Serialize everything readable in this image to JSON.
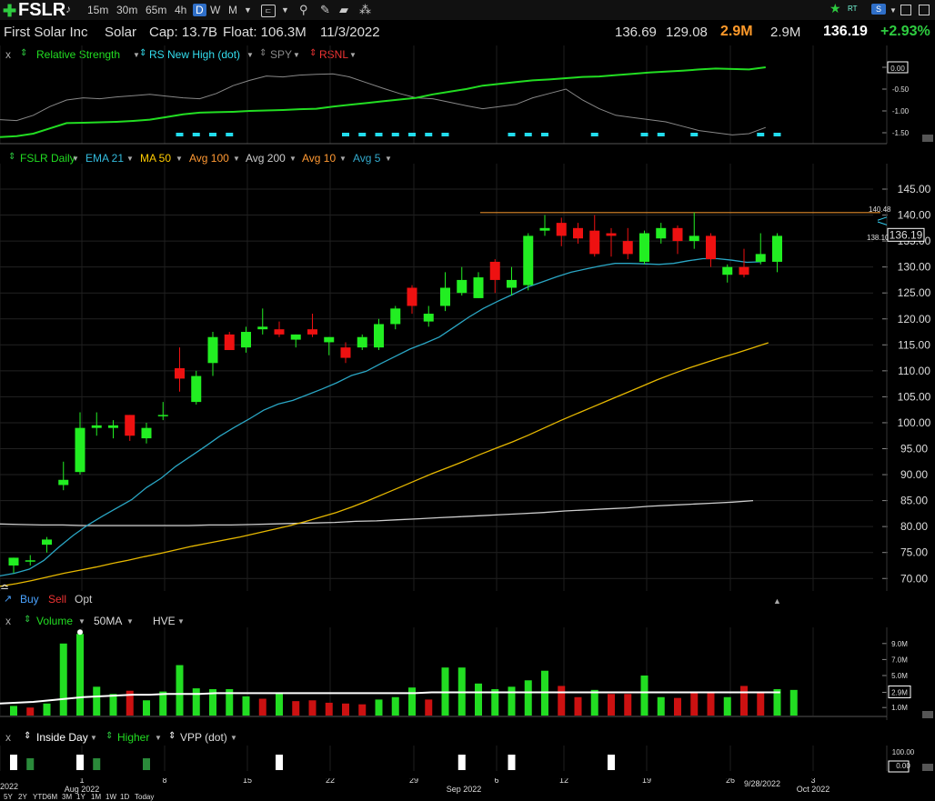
{
  "toolbar": {
    "ticker": "FSLR",
    "timeframes": [
      "15m",
      "30m",
      "65m",
      "4h",
      "D",
      "W",
      "M"
    ],
    "active_timeframe": "D",
    "right_icons": [
      "star-icon",
      "rt-icon",
      "s-icon",
      "window-icon"
    ],
    "rt_label": "RT"
  },
  "info": {
    "company": "First Solar Inc",
    "sector": "Solar",
    "cap": "Cap: 13.7B",
    "float": "Float: 106.3M",
    "date": "11/3/2022",
    "high": "136.69",
    "low": "129.08",
    "volume": "2.9M",
    "avg_volume": "2.9M",
    "last": "136.19",
    "change": "+2.93%"
  },
  "rs_pane": {
    "close": "x",
    "items": [
      "Relative Strength",
      "RS New High (dot)",
      "SPY",
      "RSNL"
    ],
    "axis": [
      "0.00",
      "-0.50",
      "-1.00",
      "-1.50"
    ]
  },
  "price_pane": {
    "items": [
      "FSLR Daily",
      "EMA 21",
      "MA 50",
      "Avg 100",
      "Avg 200",
      "Avg 10",
      "Avg 5"
    ],
    "colors": [
      "#22dd22",
      "#33bbdd",
      "#ffcc00",
      "#ff9933",
      "#cccccc",
      "#ff9933",
      "#33aacc"
    ],
    "axis": [
      "145.00",
      "140.00",
      "135.00",
      "130.00",
      "125.00",
      "120.00",
      "115.00",
      "110.00",
      "105.00",
      "100.00",
      "95.00",
      "90.00",
      "85.00",
      "80.00",
      "75.00",
      "70.00"
    ],
    "last_label": "136.19",
    "resistance_label": "140.48",
    "ema_label": "138.10"
  },
  "buy_row": {
    "buy": "Buy",
    "sell": "Sell",
    "opt": "Opt"
  },
  "volume_pane": {
    "close": "x",
    "items": [
      "Volume",
      "50MA",
      "HVE"
    ],
    "axis": [
      "9.0M",
      "7.0M",
      "5.0M",
      "2.9M",
      "1.0M"
    ]
  },
  "inside_pane": {
    "close": "x",
    "items": [
      "Inside Day",
      "Higher",
      "VPP (dot)"
    ],
    "axis": [
      "100.00",
      "0.00"
    ]
  },
  "dates": {
    "labels": [
      "2022",
      "1",
      "Aug 2022",
      "8",
      "15",
      "22",
      "29",
      "Sep 2022",
      "6",
      "12",
      "19",
      "26",
      "9/28/2022",
      "3",
      "Oct 2022"
    ],
    "ranges": [
      "5Y",
      "2Y",
      "YTD",
      "6M",
      "3M",
      "1Y",
      "1M",
      "1W",
      "1D",
      "Today"
    ]
  },
  "chart_data": {
    "type": "candlestick",
    "ylim": [
      68,
      148
    ],
    "candles": [
      {
        "o": 72.5,
        "h": 74.0,
        "l": 71.0,
        "c": 74.0
      },
      {
        "o": 73.5,
        "h": 74.5,
        "l": 72.5,
        "c": 73.5
      },
      {
        "o": 76.5,
        "h": 78.0,
        "l": 75.0,
        "c": 77.5
      },
      {
        "o": 88.0,
        "h": 92.5,
        "l": 87.0,
        "c": 89.0
      },
      {
        "o": 90.5,
        "h": 102.0,
        "l": 90.0,
        "c": 99.0
      },
      {
        "o": 99.0,
        "h": 102.0,
        "l": 97.5,
        "c": 99.5
      },
      {
        "o": 99.0,
        "h": 100.5,
        "l": 97.0,
        "c": 99.5
      },
      {
        "o": 101.5,
        "h": 101.5,
        "l": 96.5,
        "c": 97.5
      },
      {
        "o": 97.0,
        "h": 100.0,
        "l": 96.0,
        "c": 99.0
      },
      {
        "o": 101.5,
        "h": 104.0,
        "l": 100.5,
        "c": 101.5
      },
      {
        "o": 110.5,
        "h": 114.5,
        "l": 106.0,
        "c": 108.5
      },
      {
        "o": 104.0,
        "h": 110.0,
        "l": 103.5,
        "c": 109.0
      },
      {
        "o": 111.5,
        "h": 117.5,
        "l": 109.0,
        "c": 116.5
      },
      {
        "o": 117.0,
        "h": 117.5,
        "l": 114.0,
        "c": 114.0
      },
      {
        "o": 114.5,
        "h": 118.5,
        "l": 113.5,
        "c": 117.5
      },
      {
        "o": 118.0,
        "h": 122.0,
        "l": 117.0,
        "c": 118.5
      },
      {
        "o": 118.0,
        "h": 119.5,
        "l": 116.5,
        "c": 117.0
      },
      {
        "o": 116.0,
        "h": 117.0,
        "l": 114.5,
        "c": 117.0
      },
      {
        "o": 118.0,
        "h": 121.0,
        "l": 116.5,
        "c": 117.0
      },
      {
        "o": 115.5,
        "h": 116.5,
        "l": 113.0,
        "c": 116.5
      },
      {
        "o": 114.5,
        "h": 115.5,
        "l": 111.5,
        "c": 112.5
      },
      {
        "o": 114.5,
        "h": 117.0,
        "l": 114.0,
        "c": 116.5
      },
      {
        "o": 114.5,
        "h": 120.0,
        "l": 114.0,
        "c": 119.0
      },
      {
        "o": 119.0,
        "h": 122.5,
        "l": 118.0,
        "c": 122.0
      },
      {
        "o": 126.0,
        "h": 126.5,
        "l": 121.0,
        "c": 122.5
      },
      {
        "o": 119.5,
        "h": 122.5,
        "l": 118.5,
        "c": 121.0
      },
      {
        "o": 122.5,
        "h": 129.0,
        "l": 121.5,
        "c": 126.0
      },
      {
        "o": 125.0,
        "h": 130.0,
        "l": 124.5,
        "c": 127.5
      },
      {
        "o": 124.0,
        "h": 129.0,
        "l": 124.0,
        "c": 128.0
      },
      {
        "o": 131.0,
        "h": 131.5,
        "l": 125.0,
        "c": 127.5
      },
      {
        "o": 126.0,
        "h": 130.0,
        "l": 124.5,
        "c": 127.5
      },
      {
        "o": 126.5,
        "h": 136.5,
        "l": 125.5,
        "c": 136.0
      },
      {
        "o": 137.0,
        "h": 140.0,
        "l": 136.0,
        "c": 137.5
      },
      {
        "o": 138.5,
        "h": 139.5,
        "l": 134.0,
        "c": 136.0
      },
      {
        "o": 137.5,
        "h": 138.5,
        "l": 134.5,
        "c": 135.5
      },
      {
        "o": 137.0,
        "h": 140.0,
        "l": 132.0,
        "c": 132.5
      },
      {
        "o": 136.5,
        "h": 137.5,
        "l": 132.0,
        "c": 136.0
      },
      {
        "o": 135.0,
        "h": 137.5,
        "l": 131.5,
        "c": 132.5
      },
      {
        "o": 131.0,
        "h": 137.0,
        "l": 130.5,
        "c": 136.5
      },
      {
        "o": 135.5,
        "h": 138.5,
        "l": 134.5,
        "c": 137.5
      },
      {
        "o": 137.5,
        "h": 138.0,
        "l": 132.5,
        "c": 135.0
      },
      {
        "o": 135.0,
        "h": 140.5,
        "l": 133.5,
        "c": 136.0
      },
      {
        "o": 136.0,
        "h": 136.5,
        "l": 130.0,
        "c": 131.5
      },
      {
        "o": 128.5,
        "h": 130.5,
        "l": 127.0,
        "c": 130.0
      },
      {
        "o": 130.0,
        "h": 133.5,
        "l": 128.0,
        "c": 128.5
      },
      {
        "o": 131.0,
        "h": 136.5,
        "l": 130.5,
        "c": 132.5
      },
      {
        "o": 131.0,
        "h": 136.5,
        "l": 129.0,
        "c": 136.0
      }
    ],
    "ema21": [
      70.5,
      71.0,
      71.8,
      73.5,
      76.0,
      78.3,
      80.3,
      82.0,
      83.6,
      85.2,
      87.5,
      89.3,
      91.6,
      93.5,
      95.4,
      97.4,
      99.1,
      100.7,
      102.4,
      103.6,
      104.3,
      105.4,
      106.5,
      107.7,
      109.1,
      109.9,
      111.4,
      112.8,
      114.2,
      115.3,
      116.5,
      118.4,
      120.3,
      122.0,
      123.4,
      124.7,
      126.1,
      127.1,
      128.1,
      129.0,
      129.6,
      130.2,
      130.7,
      130.7,
      130.6,
      130.5,
      130.7,
      131.2,
      131.6,
      131.6,
      131.3,
      130.9,
      131.0
    ],
    "ma50": [
      68.5,
      69.0,
      69.6,
      70.3,
      71.0,
      71.6,
      72.2,
      72.9,
      73.5,
      74.2,
      74.8,
      75.5,
      76.2,
      76.8,
      77.4,
      78.0,
      78.7,
      79.4,
      80.1,
      80.9,
      81.8,
      82.7,
      83.8,
      85.0,
      86.3,
      87.6,
      88.9,
      90.2,
      91.4,
      92.6,
      93.9,
      95.1,
      96.3,
      97.6,
      99.0,
      100.4,
      101.7,
      103.0,
      104.3,
      105.6,
      106.9,
      108.2,
      109.4,
      110.5,
      111.5,
      112.5,
      113.4,
      114.4,
      115.4
    ],
    "ma200": [
      80.5,
      80.4,
      80.3,
      80.3,
      80.2,
      80.2,
      80.2,
      80.2,
      80.2,
      80.2,
      80.3,
      80.3,
      80.4,
      80.5,
      80.6,
      80.7,
      80.8,
      81.0,
      81.1,
      81.3,
      81.5,
      81.7,
      81.9,
      82.1,
      82.3,
      82.5,
      82.7,
      83.0,
      83.2,
      83.4,
      83.6,
      83.9,
      84.1,
      84.3,
      84.5,
      84.7,
      85.0
    ],
    "resistance": 140.48,
    "volume": [
      {
        "v": 1.2,
        "up": true
      },
      {
        "v": 1.0,
        "up": false
      },
      {
        "v": 1.5,
        "up": true
      },
      {
        "v": 9.0,
        "up": true
      },
      {
        "v": 10.2,
        "up": true
      },
      {
        "v": 3.6,
        "up": true
      },
      {
        "v": 2.7,
        "up": true
      },
      {
        "v": 3.1,
        "up": false
      },
      {
        "v": 1.9,
        "up": true
      },
      {
        "v": 3.0,
        "up": true
      },
      {
        "v": 6.3,
        "up": true
      },
      {
        "v": 3.4,
        "up": true
      },
      {
        "v": 3.3,
        "up": true
      },
      {
        "v": 3.3,
        "up": true
      },
      {
        "v": 2.4,
        "up": true
      },
      {
        "v": 2.1,
        "up": false
      },
      {
        "v": 2.8,
        "up": true
      },
      {
        "v": 1.8,
        "up": false
      },
      {
        "v": 1.9,
        "up": false
      },
      {
        "v": 1.6,
        "up": false
      },
      {
        "v": 1.5,
        "up": false
      },
      {
        "v": 1.4,
        "up": false
      },
      {
        "v": 2.0,
        "up": true
      },
      {
        "v": 2.3,
        "up": true
      },
      {
        "v": 3.5,
        "up": true
      },
      {
        "v": 2.0,
        "up": false
      },
      {
        "v": 6.0,
        "up": true
      },
      {
        "v": 6.0,
        "up": true
      },
      {
        "v": 4.0,
        "up": true
      },
      {
        "v": 3.3,
        "up": true
      },
      {
        "v": 3.6,
        "up": true
      },
      {
        "v": 4.4,
        "up": true
      },
      {
        "v": 5.6,
        "up": true
      },
      {
        "v": 3.7,
        "up": false
      },
      {
        "v": 2.3,
        "up": false
      },
      {
        "v": 3.2,
        "up": true
      },
      {
        "v": 2.7,
        "up": false
      },
      {
        "v": 2.7,
        "up": false
      },
      {
        "v": 5.0,
        "up": true
      },
      {
        "v": 2.3,
        "up": true
      },
      {
        "v": 2.2,
        "up": false
      },
      {
        "v": 3.0,
        "up": false
      },
      {
        "v": 2.8,
        "up": false
      },
      {
        "v": 2.3,
        "up": true
      },
      {
        "v": 3.7,
        "up": false
      },
      {
        "v": 2.8,
        "up": false
      },
      {
        "v": 3.3,
        "up": true
      },
      {
        "v": 3.2,
        "up": true
      }
    ],
    "volume_ma": [
      1.5,
      1.6,
      1.7,
      1.9,
      2.1,
      2.3,
      2.4,
      2.5,
      2.6,
      2.6,
      2.7,
      2.7,
      2.7,
      2.8,
      2.8,
      2.8,
      2.8,
      2.8,
      2.8,
      2.8,
      2.8,
      2.8,
      2.8,
      2.8,
      2.8,
      2.8,
      2.9,
      2.9,
      2.9,
      2.9,
      2.9,
      2.9,
      2.9,
      2.9,
      2.9,
      2.9,
      2.9,
      2.9,
      2.9,
      2.9,
      2.9,
      2.9,
      2.9,
      2.9,
      2.9,
      2.9,
      2.9,
      2.9
    ],
    "rs_line": [
      -1.6,
      -1.58,
      -1.52,
      -1.4,
      -1.28,
      -1.27,
      -1.26,
      -1.25,
      -1.23,
      -1.2,
      -1.14,
      -1.08,
      -1.04,
      -1.03,
      -1.02,
      -1.0,
      -0.99,
      -0.98,
      -0.96,
      -0.95,
      -0.9,
      -0.86,
      -0.82,
      -0.78,
      -0.74,
      -0.7,
      -0.62,
      -0.56,
      -0.5,
      -0.42,
      -0.38,
      -0.34,
      -0.3,
      -0.28,
      -0.25,
      -0.22,
      -0.21,
      -0.18,
      -0.15,
      -0.12,
      -0.1,
      -0.08,
      -0.05,
      -0.03,
      -0.04,
      -0.05,
      0.0
    ],
    "spy_line": [
      -1.2,
      -1.22,
      -1.1,
      -0.9,
      -0.75,
      -0.7,
      -0.72,
      -0.68,
      -0.65,
      -0.62,
      -0.66,
      -0.7,
      -0.72,
      -0.6,
      -0.42,
      -0.3,
      -0.2,
      -0.22,
      -0.18,
      -0.16,
      -0.15,
      -0.22,
      -0.35,
      -0.48,
      -0.6,
      -0.7,
      -0.72,
      -0.8,
      -0.88,
      -0.95,
      -0.9,
      -0.85,
      -0.7,
      -0.6,
      -0.5,
      -0.75,
      -0.95,
      -1.1,
      -1.15,
      -1.2,
      -1.25,
      -1.35,
      -1.45,
      -1.5,
      -1.55,
      -1.52,
      -1.38
    ],
    "rs_dots": [
      10,
      11,
      12,
      13,
      20,
      21,
      22,
      23,
      24,
      25,
      26,
      30,
      31,
      32,
      35,
      38,
      39,
      41,
      45,
      46
    ],
    "inside_days": [
      0,
      4,
      16,
      27,
      30,
      36
    ],
    "higher_days": [
      1,
      5,
      8
    ]
  }
}
